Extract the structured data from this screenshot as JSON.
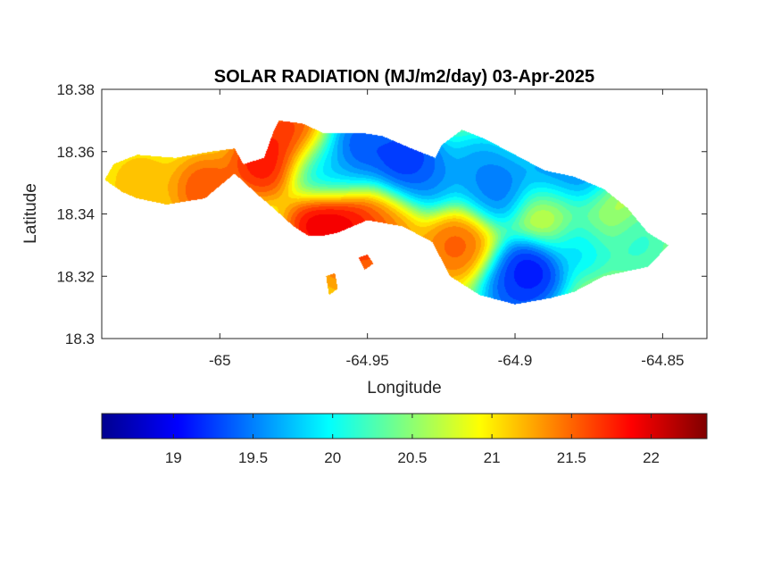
{
  "chart_data": {
    "type": "heatmap",
    "title": "SOLAR RADIATION (MJ/m2/day) 03-Apr-2025",
    "xlabel": "Longitude",
    "ylabel": "Latitude",
    "xlim": [
      -65.04,
      -64.835
    ],
    "ylim": [
      18.3,
      18.38
    ],
    "x_ticks": [
      -65,
      -64.95,
      -64.9,
      -64.85
    ],
    "x_tick_labels": [
      "-65",
      "-64.95",
      "-64.9",
      "-64.85"
    ],
    "y_ticks": [
      18.3,
      18.32,
      18.34,
      18.36,
      18.38
    ],
    "y_tick_labels": [
      "18.3",
      "18.32",
      "18.34",
      "18.36",
      "18.38"
    ],
    "colormap": "jet",
    "clim": [
      18.55,
      22.35
    ],
    "colorbar_ticks": [
      19,
      19.5,
      20,
      20.5,
      21,
      21.5,
      22
    ],
    "colorbar_tick_labels": [
      "19",
      "19.5",
      "20",
      "20.5",
      "21",
      "21.5",
      "22"
    ],
    "colorbar_location": "south",
    "grid": false,
    "field": {
      "background": 20.7,
      "hotspots": [
        {
          "lon": -65.027,
          "lat": 18.35,
          "value": 21.3
        },
        {
          "lon": -65.005,
          "lat": 18.348,
          "value": 21.8
        },
        {
          "lon": -64.985,
          "lat": 18.357,
          "value": 22.1
        },
        {
          "lon": -64.975,
          "lat": 18.365,
          "value": 21.9
        },
        {
          "lon": -64.965,
          "lat": 18.337,
          "value": 22.3
        },
        {
          "lon": -64.952,
          "lat": 18.333,
          "value": 22.2
        },
        {
          "lon": -64.958,
          "lat": 18.324,
          "value": 21.5
        },
        {
          "lon": -64.943,
          "lat": 18.335,
          "value": 21.4
        },
        {
          "lon": -64.92,
          "lat": 18.33,
          "value": 21.7
        },
        {
          "lon": -64.965,
          "lat": 18.355,
          "value": 19.6
        },
        {
          "lon": -64.953,
          "lat": 18.362,
          "value": 19.0
        },
        {
          "lon": -64.937,
          "lat": 18.358,
          "value": 18.8
        },
        {
          "lon": -64.93,
          "lat": 18.352,
          "value": 19.3
        },
        {
          "lon": -64.912,
          "lat": 18.355,
          "value": 19.4
        },
        {
          "lon": -64.905,
          "lat": 18.348,
          "value": 19.2
        },
        {
          "lon": -64.895,
          "lat": 18.322,
          "value": 18.7
        },
        {
          "lon": -64.9,
          "lat": 18.315,
          "value": 19.1
        },
        {
          "lon": -64.888,
          "lat": 18.352,
          "value": 19.3
        },
        {
          "lon": -64.878,
          "lat": 18.35,
          "value": 19.2
        },
        {
          "lon": -64.878,
          "lat": 18.332,
          "value": 19.6
        },
        {
          "lon": -64.888,
          "lat": 18.341,
          "value": 21.1
        },
        {
          "lon": -64.87,
          "lat": 18.34,
          "value": 20.9
        },
        {
          "lon": -64.86,
          "lat": 18.332,
          "value": 20.0
        }
      ]
    },
    "land_outline": [
      [
        -65.039,
        18.351
      ],
      [
        -65.036,
        18.356
      ],
      [
        -65.028,
        18.359
      ],
      [
        -65.015,
        18.358
      ],
      [
        -65.003,
        18.36
      ],
      [
        -64.995,
        18.361
      ],
      [
        -64.992,
        18.356
      ],
      [
        -64.985,
        18.358
      ],
      [
        -64.982,
        18.366
      ],
      [
        -64.98,
        18.37
      ],
      [
        -64.972,
        18.369
      ],
      [
        -64.965,
        18.366
      ],
      [
        -64.952,
        18.366
      ],
      [
        -64.945,
        18.365
      ],
      [
        -64.935,
        18.361
      ],
      [
        -64.927,
        18.358
      ],
      [
        -64.925,
        18.362
      ],
      [
        -64.918,
        18.367
      ],
      [
        -64.91,
        18.364
      ],
      [
        -64.9,
        18.359
      ],
      [
        -64.89,
        18.354
      ],
      [
        -64.88,
        18.352
      ],
      [
        -64.87,
        18.348
      ],
      [
        -64.862,
        18.342
      ],
      [
        -64.855,
        18.334
      ],
      [
        -64.848,
        18.33
      ],
      [
        -64.855,
        18.323
      ],
      [
        -64.87,
        18.32
      ],
      [
        -64.88,
        18.315
      ],
      [
        -64.888,
        18.313
      ],
      [
        -64.9,
        18.311
      ],
      [
        -64.912,
        18.314
      ],
      [
        -64.922,
        18.32
      ],
      [
        -64.928,
        18.331
      ],
      [
        -64.938,
        18.336
      ],
      [
        -64.95,
        18.338
      ],
      [
        -64.96,
        18.334
      ],
      [
        -64.965,
        18.333
      ],
      [
        -64.97,
        18.333
      ],
      [
        -64.975,
        18.336
      ],
      [
        -64.982,
        18.342
      ],
      [
        -64.987,
        18.346
      ],
      [
        -64.995,
        18.353
      ],
      [
        -65.005,
        18.345
      ],
      [
        -65.018,
        18.343
      ],
      [
        -65.028,
        18.345
      ],
      [
        -65.033,
        18.347
      ]
    ],
    "islets": [
      [
        [
          -64.953,
          18.326
        ],
        [
          -64.95,
          18.327
        ],
        [
          -64.948,
          18.324
        ],
        [
          -64.951,
          18.322
        ]
      ],
      [
        [
          -64.964,
          18.32
        ],
        [
          -64.961,
          18.321
        ],
        [
          -64.96,
          18.316
        ],
        [
          -64.963,
          18.314
        ]
      ]
    ]
  }
}
